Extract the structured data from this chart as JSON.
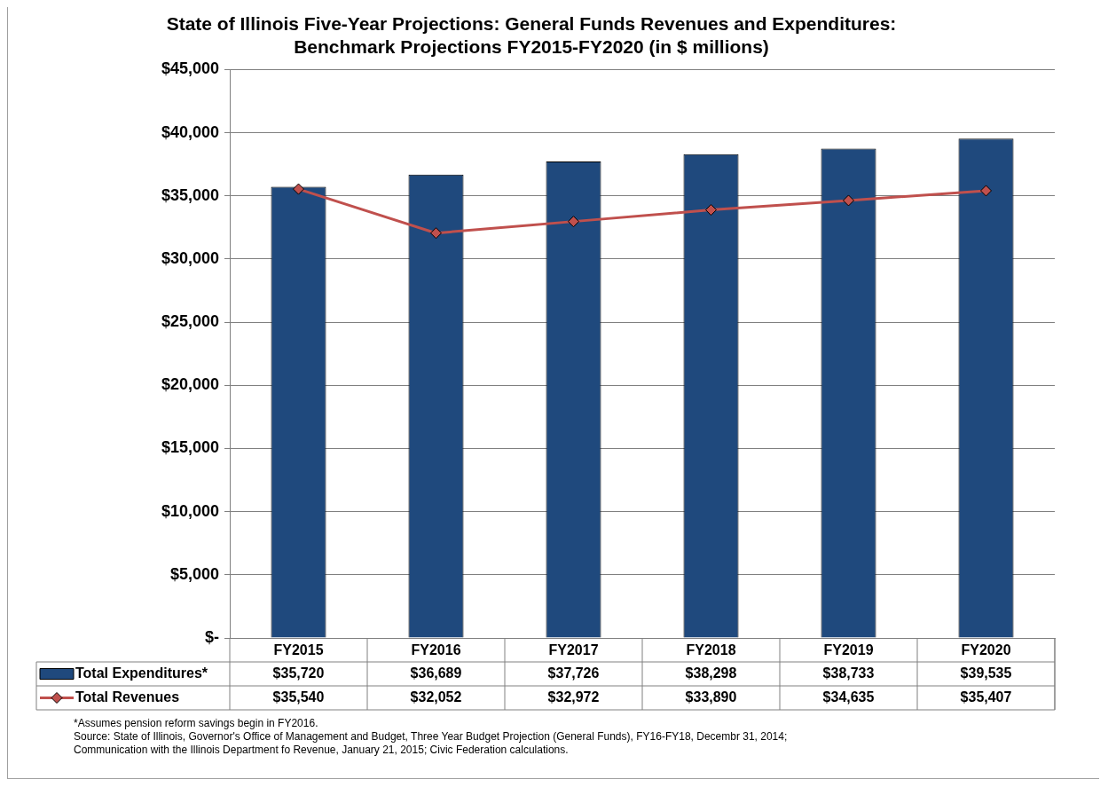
{
  "chart_data": {
    "type": "bar",
    "title": [
      "State of Illinois Five-Year Projections: General Funds Revenues and Expenditures:",
      "Benchmark Projections FY2015-FY2020 (in $ millions)"
    ],
    "categories": [
      "FY2015",
      "FY2016",
      "FY2017",
      "FY2018",
      "FY2019",
      "FY2020"
    ],
    "series": [
      {
        "name": "Total Expenditures*",
        "color": "#1f497d",
        "values": [
          35720,
          36689,
          37726,
          38298,
          38733,
          39535
        ],
        "value_labels": [
          "$35,720",
          "$36,689",
          "$37,726",
          "$38,298",
          "$38,733",
          "$39,535"
        ]
      },
      {
        "name": "Total Revenues",
        "type": "line",
        "color": "#c0504d",
        "marker": "diamond",
        "values": [
          35540,
          32052,
          32972,
          33890,
          34635,
          35407
        ],
        "value_labels": [
          "$35,540",
          "$32,052",
          "$32,972",
          "$33,890",
          "$34,635",
          "$35,407"
        ]
      }
    ],
    "ylim": [
      0,
      45000
    ],
    "yticks": [
      {
        "value": 0,
        "label": "$-"
      },
      {
        "value": 5000,
        "label": "$5,000"
      },
      {
        "value": 10000,
        "label": "$10,000"
      },
      {
        "value": 15000,
        "label": "$15,000"
      },
      {
        "value": 20000,
        "label": "$20,000"
      },
      {
        "value": 25000,
        "label": "$25,000"
      },
      {
        "value": 30000,
        "label": "$30,000"
      },
      {
        "value": 35000,
        "label": "$35,000"
      },
      {
        "value": 40000,
        "label": "$40,000"
      },
      {
        "value": 45000,
        "label": "$45,000"
      }
    ],
    "grid": "y",
    "legend": "bottom left",
    "annotations": [
      "*Assumes pension reform savings begin in FY2016.",
      "Source: State of Illinois, Governor's Office of Management and Budget, Three Year Budget Projection (General Funds), FY16-FY18, Decembr 31, 2014;",
      "Communication with the Illinois Department fo Revenue, January 21, 2015; Civic Federation calculations."
    ]
  }
}
